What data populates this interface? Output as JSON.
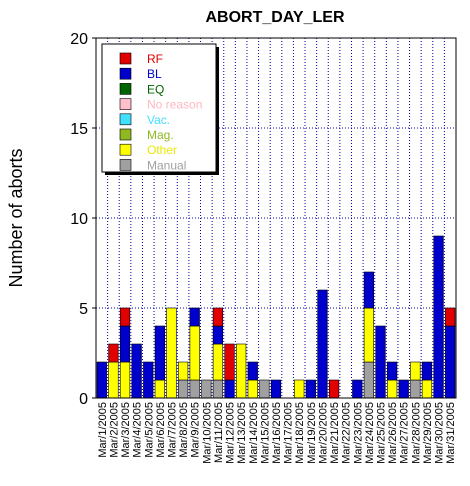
{
  "chart_data": {
    "type": "bar",
    "stacked": true,
    "title": "ABORT_DAY_LER",
    "ylabel": "Number of aborts",
    "xlabel": "",
    "ylim": [
      0,
      20
    ],
    "yticks": [
      0,
      5,
      10,
      15,
      20
    ],
    "grid": true,
    "legend_position": "top-left",
    "categories": [
      "Mar/1/2005",
      "Mar/2/2005",
      "Mar/3/2005",
      "Mar/4/2005",
      "Mar/5/2005",
      "Mar/6/2005",
      "Mar/7/2005",
      "Mar/8/2005",
      "Mar/9/2005",
      "Mar/10/2005",
      "Mar/11/2005",
      "Mar/12/2005",
      "Mar/13/2005",
      "Mar/14/2005",
      "Mar/15/2005",
      "Mar/16/2005",
      "Mar/17/2005",
      "Mar/18/2005",
      "Mar/19/2005",
      "Mar/20/2005",
      "Mar/21/2005",
      "Mar/22/2005",
      "Mar/23/2005",
      "Mar/24/2005",
      "Mar/25/2005",
      "Mar/26/2005",
      "Mar/27/2005",
      "Mar/28/2005",
      "Mar/29/2005",
      "Mar/30/2005",
      "Mar/31/2005"
    ],
    "series": [
      {
        "name": "Manual",
        "color": "#a0a0a0",
        "values": [
          0,
          0,
          0,
          0,
          0,
          0,
          0,
          1,
          1,
          1,
          1,
          0,
          0,
          0,
          1,
          0,
          0,
          0,
          0,
          0,
          0,
          0,
          0,
          2,
          0,
          0,
          0,
          1,
          0,
          0,
          0
        ]
      },
      {
        "name": "Other",
        "color": "#ffff00",
        "values": [
          0,
          2,
          2,
          0,
          0,
          1,
          5,
          1,
          3,
          0,
          2,
          0,
          3,
          1,
          0,
          0,
          0,
          1,
          0,
          0,
          0,
          0,
          0,
          3,
          0,
          1,
          0,
          1,
          1,
          0,
          0
        ]
      },
      {
        "name": "Mag.",
        "color": "#8fb821",
        "values": [
          0,
          0,
          0,
          0,
          0,
          0,
          0,
          0,
          0,
          0,
          0,
          0,
          0,
          0,
          0,
          0,
          0,
          0,
          0,
          0,
          0,
          0,
          0,
          0,
          0,
          0,
          0,
          0,
          0,
          0,
          0
        ]
      },
      {
        "name": "Vac.",
        "color": "#40e0ff",
        "values": [
          0,
          0,
          0,
          0,
          0,
          0,
          0,
          0,
          0,
          0,
          0,
          0,
          0,
          0,
          0,
          0,
          0,
          0,
          0,
          0,
          0,
          0,
          0,
          0,
          0,
          0,
          0,
          0,
          0,
          0,
          0
        ]
      },
      {
        "name": "No reason",
        "color": "#ffc0cb",
        "values": [
          0,
          0,
          0,
          0,
          0,
          0,
          0,
          0,
          0,
          0,
          0,
          0,
          0,
          0,
          0,
          0,
          0,
          0,
          0,
          0,
          0,
          0,
          0,
          0,
          0,
          0,
          0,
          0,
          0,
          0,
          0
        ]
      },
      {
        "name": "EQ",
        "color": "#006400",
        "values": [
          0,
          0,
          0,
          0,
          0,
          0,
          0,
          0,
          0,
          0,
          0,
          0,
          0,
          0,
          0,
          0,
          0,
          0,
          0,
          0,
          0,
          0,
          0,
          0,
          0,
          0,
          0,
          0,
          0,
          0,
          0
        ]
      },
      {
        "name": "BL",
        "color": "#0000cd",
        "values": [
          2,
          0,
          2,
          3,
          2,
          3,
          0,
          0,
          1,
          0,
          1,
          1,
          0,
          1,
          0,
          1,
          0,
          0,
          1,
          6,
          0,
          0,
          1,
          2,
          4,
          1,
          1,
          0,
          1,
          9,
          4
        ]
      },
      {
        "name": "RF",
        "color": "#e00000",
        "values": [
          0,
          1,
          1,
          0,
          0,
          0,
          0,
          0,
          0,
          0,
          1,
          2,
          0,
          0,
          0,
          0,
          0,
          0,
          0,
          0,
          1,
          0,
          0,
          0,
          0,
          0,
          0,
          0,
          0,
          0,
          1
        ]
      }
    ]
  },
  "legend": {
    "items": [
      {
        "label": "RF",
        "color": "#e00000",
        "text_color": "#e00000"
      },
      {
        "label": "BL",
        "color": "#0000cd",
        "text_color": "#0000cd"
      },
      {
        "label": "EQ",
        "color": "#006400",
        "text_color": "#006400"
      },
      {
        "label": "No reason",
        "color": "#ffc0cb",
        "text_color": "#ffb6c1"
      },
      {
        "label": "Vac.",
        "color": "#40e0ff",
        "text_color": "#40e0ff"
      },
      {
        "label": "Mag.",
        "color": "#8fb821",
        "text_color": "#8fb821"
      },
      {
        "label": "Other",
        "color": "#ffff00",
        "text_color": "#e8e800"
      },
      {
        "label": "Manual",
        "color": "#a0a0a0",
        "text_color": "#a0a0a0"
      }
    ]
  },
  "colors": {
    "grid": "#0000aa",
    "bar_edge": "#000000",
    "background": "#ffffff"
  }
}
